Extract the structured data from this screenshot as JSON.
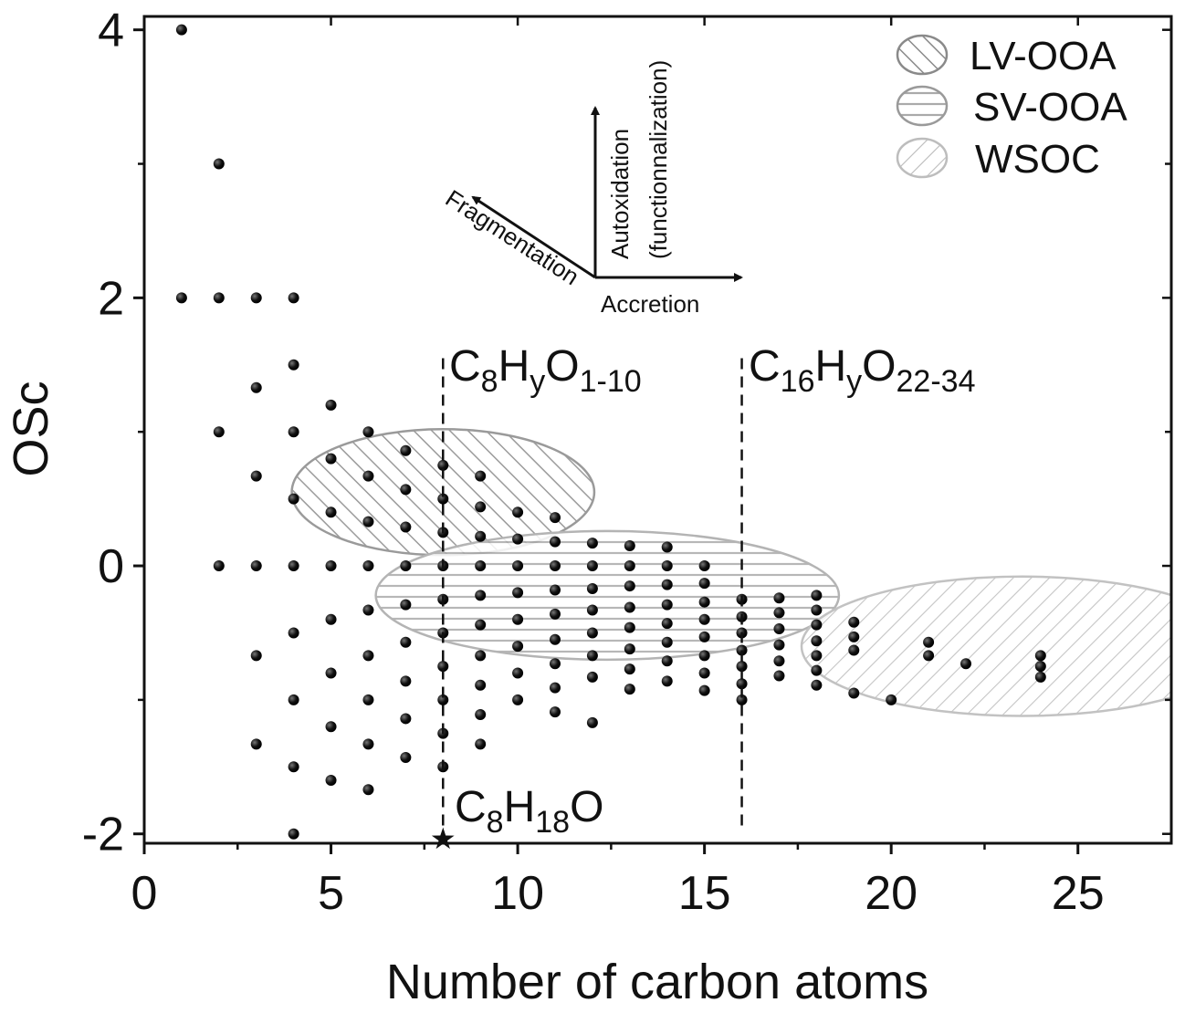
{
  "chart_data": {
    "type": "scatter",
    "xlabel": "Number of carbon atoms",
    "ylabel": "OSc",
    "xlim": [
      0,
      27.5
    ],
    "ylim": [
      -2.07,
      4.1
    ],
    "x_ticks": [
      0,
      5,
      10,
      15,
      20,
      25
    ],
    "y_ticks": [
      -2,
      0,
      2,
      4
    ],
    "x_tick_labels": [
      "0",
      "5",
      "10",
      "15",
      "20",
      "25"
    ],
    "y_tick_labels": [
      "-2",
      "0",
      "2",
      "4"
    ],
    "points": [
      [
        1,
        4
      ],
      [
        2,
        3
      ],
      [
        1,
        2
      ],
      [
        2,
        2
      ],
      [
        3,
        2
      ],
      [
        4,
        2
      ],
      [
        4,
        1.5
      ],
      [
        3,
        1.33
      ],
      [
        5,
        1.2
      ],
      [
        2,
        1
      ],
      [
        4,
        1
      ],
      [
        6,
        1
      ],
      [
        7,
        0.86
      ],
      [
        5,
        0.8
      ],
      [
        8,
        0.75
      ],
      [
        3,
        0.67
      ],
      [
        6,
        0.67
      ],
      [
        9,
        0.67
      ],
      [
        7,
        0.57
      ],
      [
        4,
        0.5
      ],
      [
        8,
        0.5
      ],
      [
        9,
        0.44
      ],
      [
        5,
        0.4
      ],
      [
        10,
        0.4
      ],
      [
        11,
        0.36
      ],
      [
        6,
        0.33
      ],
      [
        7,
        0.29
      ],
      [
        8,
        0.25
      ],
      [
        9,
        0.22
      ],
      [
        10,
        0.2
      ],
      [
        11,
        0.18
      ],
      [
        12,
        0.17
      ],
      [
        13,
        0.15
      ],
      [
        14,
        0.14
      ],
      [
        2,
        0
      ],
      [
        3,
        0
      ],
      [
        4,
        0
      ],
      [
        5,
        0
      ],
      [
        6,
        0
      ],
      [
        7,
        0
      ],
      [
        8,
        0
      ],
      [
        9,
        0
      ],
      [
        10,
        0
      ],
      [
        11,
        0
      ],
      [
        12,
        0
      ],
      [
        13,
        0
      ],
      [
        14,
        0
      ],
      [
        15,
        0
      ],
      [
        15,
        -0.13
      ],
      [
        14,
        -0.14
      ],
      [
        13,
        -0.15
      ],
      [
        12,
        -0.17
      ],
      [
        11,
        -0.18
      ],
      [
        10,
        -0.2
      ],
      [
        9,
        -0.22
      ],
      [
        8,
        -0.25
      ],
      [
        16,
        -0.25
      ],
      [
        17,
        -0.24
      ],
      [
        18,
        -0.22
      ],
      [
        7,
        -0.29
      ],
      [
        15,
        -0.27
      ],
      [
        14,
        -0.29
      ],
      [
        13,
        -0.31
      ],
      [
        12,
        -0.33
      ],
      [
        6,
        -0.33
      ],
      [
        11,
        -0.36
      ],
      [
        18,
        -0.33
      ],
      [
        17,
        -0.35
      ],
      [
        16,
        -0.38
      ],
      [
        10,
        -0.4
      ],
      [
        5,
        -0.4
      ],
      [
        15,
        -0.4
      ],
      [
        14,
        -0.43
      ],
      [
        9,
        -0.44
      ],
      [
        13,
        -0.46
      ],
      [
        18,
        -0.44
      ],
      [
        19,
        -0.42
      ],
      [
        17,
        -0.47
      ],
      [
        8,
        -0.5
      ],
      [
        4,
        -0.5
      ],
      [
        12,
        -0.5
      ],
      [
        16,
        -0.5
      ],
      [
        15,
        -0.53
      ],
      [
        19,
        -0.53
      ],
      [
        11,
        -0.55
      ],
      [
        7,
        -0.57
      ],
      [
        14,
        -0.57
      ],
      [
        21,
        -0.57
      ],
      [
        17,
        -0.59
      ],
      [
        18,
        -0.56
      ],
      [
        13,
        -0.62
      ],
      [
        16,
        -0.63
      ],
      [
        19,
        -0.63
      ],
      [
        10,
        -0.6
      ],
      [
        3,
        -0.67
      ],
      [
        6,
        -0.67
      ],
      [
        9,
        -0.67
      ],
      [
        12,
        -0.67
      ],
      [
        15,
        -0.67
      ],
      [
        18,
        -0.67
      ],
      [
        21,
        -0.67
      ],
      [
        24,
        -0.67
      ],
      [
        17,
        -0.71
      ],
      [
        14,
        -0.71
      ],
      [
        11,
        -0.73
      ],
      [
        22,
        -0.73
      ],
      [
        8,
        -0.75
      ],
      [
        16,
        -0.75
      ],
      [
        13,
        -0.77
      ],
      [
        24,
        -0.75
      ],
      [
        5,
        -0.8
      ],
      [
        10,
        -0.8
      ],
      [
        15,
        -0.8
      ],
      [
        18,
        -0.78
      ],
      [
        17,
        -0.82
      ],
      [
        24,
        -0.83
      ],
      [
        12,
        -0.83
      ],
      [
        7,
        -0.86
      ],
      [
        14,
        -0.86
      ],
      [
        16,
        -0.88
      ],
      [
        9,
        -0.89
      ],
      [
        11,
        -0.91
      ],
      [
        18,
        -0.89
      ],
      [
        13,
        -0.92
      ],
      [
        15,
        -0.93
      ],
      [
        19,
        -0.95
      ],
      [
        4,
        -1
      ],
      [
        6,
        -1
      ],
      [
        8,
        -1
      ],
      [
        10,
        -1
      ],
      [
        16,
        -1
      ],
      [
        20,
        -1
      ],
      [
        11,
        -1.09
      ],
      [
        9,
        -1.11
      ],
      [
        7,
        -1.14
      ],
      [
        12,
        -1.17
      ],
      [
        5,
        -1.2
      ],
      [
        8,
        -1.25
      ],
      [
        3,
        -1.33
      ],
      [
        6,
        -1.33
      ],
      [
        9,
        -1.33
      ],
      [
        7,
        -1.43
      ],
      [
        4,
        -1.5
      ],
      [
        8,
        -1.5
      ],
      [
        5,
        -1.6
      ],
      [
        6,
        -1.67
      ],
      [
        4,
        -2
      ]
    ],
    "star_point": [
      8,
      -2.04
    ],
    "annotations": [
      {
        "text": "C8HyO1-10",
        "x": 8
      },
      {
        "text": "C16HyO22-34",
        "x": 16
      },
      {
        "text": "C8H18O",
        "x": 8
      }
    ],
    "regions": [
      {
        "name": "LV-OOA",
        "cx": 8.0,
        "cy": 0.55,
        "rx": 4.05,
        "ry": 0.47,
        "hatch": "diagonal-forward",
        "color": "#9a9a9a"
      },
      {
        "name": "SV-OOA",
        "cx": 12.4,
        "cy": -0.22,
        "rx": 6.2,
        "ry": 0.48,
        "hatch": "horizontal",
        "color": "#b4b4b4"
      },
      {
        "name": "WSOC",
        "cx": 23.5,
        "cy": -0.6,
        "rx": 5.9,
        "ry": 0.52,
        "hatch": "diagonal-back",
        "color": "#c2c2c2"
      }
    ],
    "legend": {
      "position": "top-right",
      "entries": [
        "LV-OOA",
        "SV-OOA",
        "WSOC"
      ]
    },
    "grid": false
  },
  "labels": {
    "c8_base": "C",
    "c8_sub1": "8",
    "c8_h": "H",
    "c8_sub2": "y",
    "c8_o": "O",
    "c8_sub3": "1-10",
    "c16_base": "C",
    "c16_sub1": "16",
    "c16_h": "H",
    "c16_sub2": "y",
    "c16_o": "O",
    "c16_sub3": "22-34",
    "c8h18_base": "C",
    "c8h18_sub1": "8",
    "c8h18_h": "H",
    "c8h18_sub2": "18",
    "c8h18_o": "O",
    "arrow_fragmentation": "Fragmentation",
    "arrow_autoxidation": "Autoxidation",
    "arrow_functionalization": "(functionnalization)",
    "arrow_accretion": "Accretion"
  }
}
